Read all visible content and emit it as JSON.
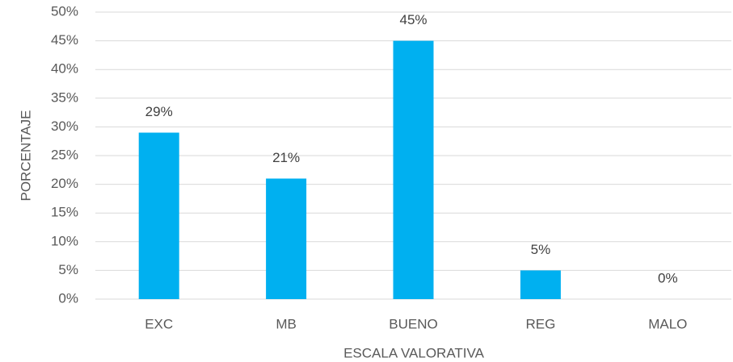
{
  "chart_data": {
    "type": "bar",
    "x_label": "ESCALA VALORATIVA",
    "y_label": "PORCENTAJE",
    "categories": [
      "EXC",
      "MB",
      "BUENO",
      "REG",
      "MALO"
    ],
    "values": [
      29,
      21,
      45,
      5,
      0
    ],
    "value_labels": [
      "29%",
      "21%",
      "45%",
      "5%",
      "0%"
    ],
    "color": "#00b0f0",
    "ylim": [
      0,
      50
    ],
    "yticks": [
      {
        "value": 0,
        "label": "0%"
      },
      {
        "value": 5,
        "label": "5%"
      },
      {
        "value": 10,
        "label": "10%"
      },
      {
        "value": 15,
        "label": "15%"
      },
      {
        "value": 20,
        "label": "20%"
      },
      {
        "value": 25,
        "label": "25%"
      },
      {
        "value": 30,
        "label": "30%"
      },
      {
        "value": 35,
        "label": "35%"
      },
      {
        "value": 40,
        "label": "40%"
      },
      {
        "value": 45,
        "label": "45%"
      },
      {
        "value": 50,
        "label": "50%"
      }
    ],
    "grid": true
  }
}
